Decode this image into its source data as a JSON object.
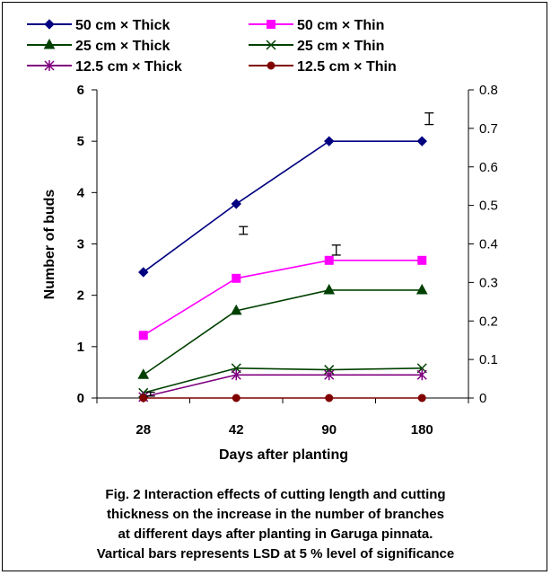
{
  "chart_data": {
    "type": "line",
    "categories": [
      "28",
      "42",
      "90",
      "180"
    ],
    "xlabel": "Days after planting",
    "ylabel": "Number of buds",
    "ylim": [
      0,
      6
    ],
    "y_ticks": [
      "0",
      "1",
      "2",
      "3",
      "4",
      "5",
      "6"
    ],
    "ylim_right": [
      0,
      0.8
    ],
    "y_right_ticks": [
      "0",
      "0.1",
      "0.2",
      "0.3",
      "0.4",
      "0.5",
      "0.6",
      "0.7",
      "0.8"
    ],
    "grid": false,
    "legend_position": "top",
    "series": [
      {
        "name": "50 cm  × Thick",
        "color": "#000080",
        "marker": "diamond",
        "values": [
          2.45,
          3.78,
          5.0,
          5.0
        ]
      },
      {
        "name": "50 cm × Thin",
        "color": "#ff00ff",
        "marker": "square",
        "values": [
          1.22,
          2.33,
          2.68,
          2.68
        ]
      },
      {
        "name": "25 cm × Thick",
        "color": "#004000",
        "marker": "triangle",
        "values": [
          0.45,
          1.7,
          2.1,
          2.1
        ]
      },
      {
        "name": "25  cm × Thin",
        "color": "#004000",
        "marker": "x",
        "values": [
          0.1,
          0.58,
          0.55,
          0.58
        ]
      },
      {
        "name": "12.5 cm × Thick",
        "color": "#800080",
        "marker": "star",
        "values": [
          0.02,
          0.45,
          0.45,
          0.45
        ]
      },
      {
        "name": "12.5 cm × Thin",
        "color": "#800000",
        "marker": "circle",
        "values": [
          0.0,
          0.0,
          0.0,
          0.0
        ]
      }
    ],
    "lsd_bars": [
      {
        "category": "28",
        "center": 0.01,
        "half": 0.005
      },
      {
        "category": "42",
        "center": 0.435,
        "half": 0.01
      },
      {
        "category": "90",
        "center": 0.384,
        "half": 0.013
      },
      {
        "category": "180",
        "center": 0.725,
        "half": 0.015
      }
    ]
  },
  "caption": {
    "line1": "Fig. 2 Interaction effects of cutting length and cutting",
    "line2": "thickness on  the increase in the number of branches",
    "line3": "at different days after  planting in Garuga  pinnata.",
    "line4": "Vartical bars represents LSD at 5 % level of significance"
  }
}
